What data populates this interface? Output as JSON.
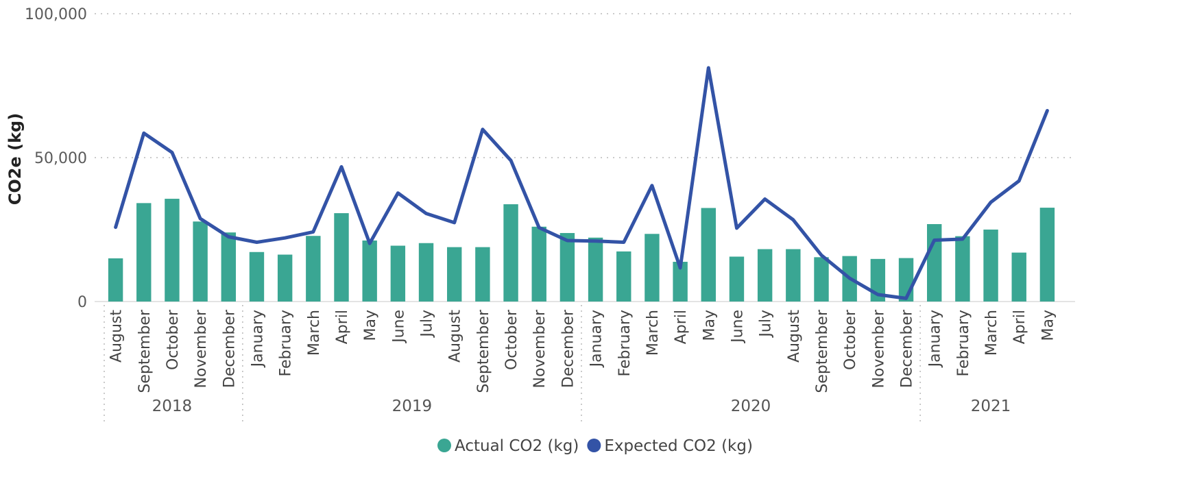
{
  "chart_data": {
    "type": "bar",
    "ylabel": "CO2e (kg)",
    "xlabel": "",
    "ylim": [
      0,
      100000
    ],
    "y_ticks": [
      {
        "value": 0,
        "label": "0"
      },
      {
        "value": 50000,
        "label": "50,000"
      },
      {
        "value": 100000,
        "label": "100,000"
      }
    ],
    "grid": true,
    "legend_position": "bottom-center",
    "categories": [
      "August",
      "September",
      "October",
      "November",
      "December",
      "January",
      "February",
      "March",
      "April",
      "May",
      "June",
      "July",
      "August",
      "September",
      "October",
      "November",
      "December",
      "January",
      "February",
      "March",
      "April",
      "May",
      "June",
      "July",
      "August",
      "September",
      "October",
      "November",
      "December",
      "January",
      "February",
      "March",
      "April",
      "May"
    ],
    "years": [
      {
        "label": "2018",
        "count": 5
      },
      {
        "label": "2019",
        "count": 12
      },
      {
        "label": "2020",
        "count": 12
      },
      {
        "label": "2021",
        "count": 5
      }
    ],
    "series": [
      {
        "name": "Actual CO2 (kg)",
        "type": "bar",
        "color": "#3aa693",
        "values": [
          15000,
          34200,
          35700,
          27800,
          24000,
          17200,
          16300,
          22800,
          30700,
          21200,
          19400,
          20300,
          18900,
          18900,
          33800,
          26000,
          23800,
          22200,
          17400,
          23500,
          13800,
          32500,
          15600,
          18200,
          18200,
          15400,
          15800,
          14800,
          15100,
          26900,
          22700,
          25000,
          17000,
          32600
        ]
      },
      {
        "name": "Expected CO2 (kg)",
        "type": "line",
        "color": "#3353a6",
        "values": [
          25800,
          58500,
          51800,
          28800,
          22500,
          20600,
          22100,
          24200,
          46800,
          20200,
          37700,
          30600,
          27400,
          59800,
          49000,
          25700,
          21200,
          21000,
          20600,
          40300,
          11700,
          81200,
          25500,
          35600,
          28400,
          16100,
          8100,
          2400,
          1100,
          21300,
          21700,
          34500,
          41900,
          66300
        ]
      }
    ]
  }
}
